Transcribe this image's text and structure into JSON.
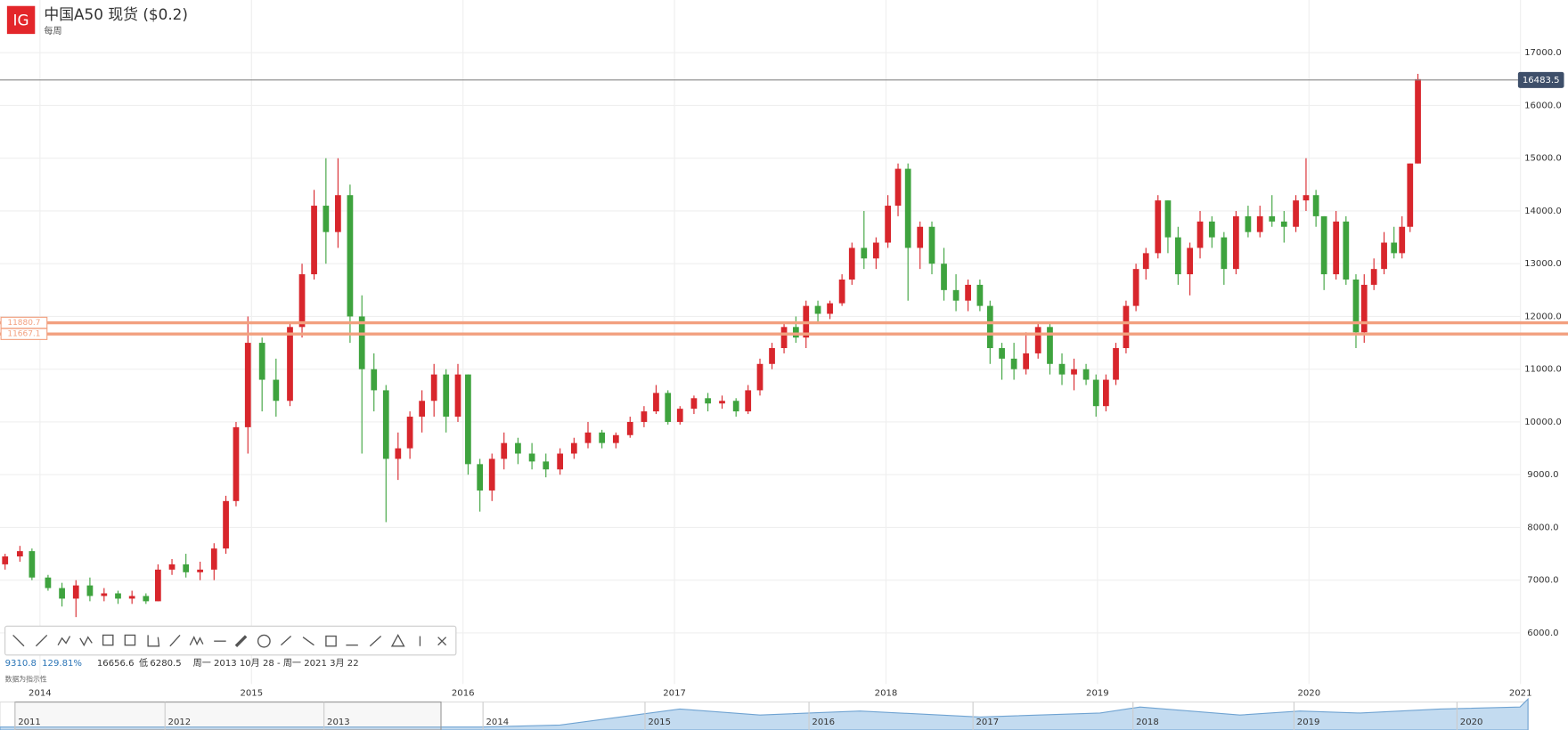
{
  "logo": "IG",
  "chart_data": {
    "type": "candlestick",
    "title": "中国A50 现货 ($0.2)",
    "subtitle": "每周",
    "up_color": "#d8262c",
    "down_color": "#3ea33e",
    "level_color": "#f2a07f",
    "grid": true,
    "x": [
      2013.835,
      2013.905,
      2013.962,
      2014.038,
      2014.104,
      2014.17,
      2014.236,
      2014.303,
      2014.369,
      2014.435,
      2014.501,
      2014.558,
      2014.624,
      2014.69,
      2014.757,
      2014.823,
      2014.879,
      2014.927,
      2014.983,
      2015.05,
      2015.116,
      2015.182,
      2015.239,
      2015.296,
      2015.352,
      2015.409,
      2015.466,
      2015.522,
      2015.579,
      2015.636,
      2015.693,
      2015.749,
      2015.806,
      2015.863,
      2015.92,
      2015.976,
      2016.024,
      2016.08,
      2016.137,
      2016.194,
      2016.26,
      2016.326,
      2016.392,
      2016.459,
      2016.525,
      2016.591,
      2016.657,
      2016.723,
      2016.79,
      2016.856,
      2016.913,
      2016.969,
      2017.026,
      2017.092,
      2017.158,
      2017.225,
      2017.291,
      2017.348,
      2017.404,
      2017.461,
      2017.518,
      2017.574,
      2017.622,
      2017.678,
      2017.735,
      2017.792,
      2017.839,
      2017.896,
      2017.953,
      2018.009,
      2018.057,
      2018.104,
      2018.161,
      2018.217,
      2018.274,
      2018.331,
      2018.388,
      2018.444,
      2018.492,
      2018.548,
      2018.605,
      2018.662,
      2018.719,
      2018.775,
      2018.832,
      2018.889,
      2018.946,
      2018.993,
      2019.04,
      2019.087,
      2019.135,
      2019.182,
      2019.229,
      2019.286,
      2019.333,
      2019.381,
      2019.437,
      2019.485,
      2019.541,
      2019.598,
      2019.655,
      2019.712,
      2019.768,
      2019.825,
      2019.882,
      2019.938,
      2019.986,
      2020.033,
      2020.071,
      2020.128,
      2020.175,
      2020.222,
      2020.261,
      2020.307,
      2020.355,
      2020.402,
      2020.44,
      2020.478,
      2020.515
    ],
    "open": [
      7300,
      7450,
      7550,
      7050,
      6850,
      6650,
      6900,
      6700,
      6750,
      6650,
      6700,
      6600,
      7200,
      7300,
      7150,
      7200,
      7600,
      8500,
      9900,
      11500,
      10800,
      10400,
      11800,
      12800,
      14100,
      13600,
      14300,
      12000,
      11000,
      10600,
      9300,
      9500,
      10100,
      10400,
      10900,
      10100,
      10900,
      9200,
      8700,
      9300,
      9600,
      9400,
      9250,
      9100,
      9400,
      9600,
      9800,
      9600,
      9750,
      10000,
      10200,
      10550,
      10000,
      10250,
      10450,
      10350,
      10400,
      10200,
      10600,
      11100,
      11400,
      11800,
      11600,
      12200,
      12050,
      12250,
      12700,
      13300,
      13100,
      13400,
      14100,
      14800,
      13300,
      13700,
      13000,
      12500,
      12300,
      12600,
      12200,
      11400,
      11200,
      11000,
      11300,
      11800,
      11100,
      10900,
      11000,
      10800,
      10300,
      10800,
      11400,
      12200,
      12900,
      13200,
      14200,
      13500,
      12800,
      13300,
      13800,
      13500,
      12900,
      13900,
      13600,
      13900,
      13800,
      13700,
      14200,
      14300,
      13900,
      12800,
      13800,
      12700,
      11700,
      12600,
      12900,
      13400,
      13200,
      13700,
      14900
    ],
    "high": [
      7500,
      7650,
      7600,
      7100,
      6950,
      7000,
      7050,
      6850,
      6800,
      6800,
      6750,
      7300,
      7400,
      7500,
      7350,
      7700,
      8600,
      10000,
      12000,
      11600,
      11200,
      11900,
      13000,
      14400,
      15000,
      15000,
      14500,
      12400,
      11300,
      10700,
      9800,
      10200,
      10600,
      11100,
      11000,
      11100,
      10900,
      9300,
      9400,
      9800,
      9700,
      9600,
      9400,
      9500,
      9700,
      10000,
      9850,
      9800,
      10100,
      10300,
      10700,
      10600,
      10300,
      10500,
      10550,
      10500,
      10450,
      10700,
      11200,
      11500,
      11900,
      12000,
      12300,
      12300,
      12300,
      12800,
      13400,
      14000,
      13500,
      14300,
      14900,
      14900,
      13800,
      13800,
      13300,
      12800,
      12700,
      12700,
      12300,
      11500,
      11500,
      11700,
      11900,
      11900,
      11300,
      11200,
      11100,
      10900,
      10900,
      11500,
      12300,
      13000,
      13300,
      14300,
      14200,
      13700,
      13400,
      14000,
      13900,
      13600,
      14000,
      14100,
      14100,
      14300,
      14000,
      14300,
      15000,
      14400,
      13900,
      14000,
      13900,
      12800,
      12800,
      13100,
      13600,
      13700,
      13900,
      14900,
      16600
    ],
    "low": [
      7200,
      7350,
      7000,
      6800,
      6500,
      6300,
      6600,
      6600,
      6550,
      6550,
      6550,
      6600,
      7100,
      7050,
      7000,
      7000,
      7500,
      8400,
      9400,
      10200,
      10100,
      10300,
      11600,
      12700,
      13000,
      13300,
      11500,
      9400,
      10200,
      8100,
      8900,
      9300,
      9800,
      10100,
      9800,
      10000,
      9000,
      8300,
      8500,
      9100,
      9200,
      9100,
      8950,
      9000,
      9300,
      9500,
      9500,
      9500,
      9700,
      9900,
      10150,
      9950,
      9950,
      10150,
      10200,
      10250,
      10100,
      10150,
      10500,
      11000,
      11300,
      11500,
      11400,
      11900,
      11950,
      12200,
      12600,
      12900,
      12900,
      13300,
      13900,
      12300,
      12900,
      12800,
      12300,
      12100,
      12100,
      12100,
      11100,
      10800,
      10800,
      10900,
      11200,
      10900,
      10700,
      10600,
      10700,
      10100,
      10200,
      10700,
      11300,
      12100,
      12700,
      13100,
      13200,
      12600,
      12400,
      13100,
      13300,
      12600,
      12800,
      13500,
      13500,
      13700,
      13400,
      13600,
      14000,
      13700,
      12500,
      12700,
      12600,
      11400,
      11500,
      12500,
      12800,
      13100,
      13100,
      13600,
      14900
    ],
    "close": [
      7450,
      7550,
      7050,
      6850,
      6650,
      6900,
      6700,
      6750,
      6650,
      6700,
      6600,
      7200,
      7300,
      7150,
      7200,
      7600,
      8500,
      9900,
      11500,
      10800,
      10400,
      11800,
      12800,
      14100,
      13600,
      14300,
      12000,
      11000,
      10600,
      9300,
      9500,
      10100,
      10400,
      10900,
      10100,
      10900,
      9200,
      8700,
      9300,
      9600,
      9400,
      9250,
      9100,
      9400,
      9600,
      9800,
      9600,
      9750,
      10000,
      10200,
      10550,
      10000,
      10250,
      10450,
      10350,
      10400,
      10200,
      10600,
      11100,
      11400,
      11800,
      11600,
      12200,
      12050,
      12250,
      12700,
      13300,
      13100,
      13400,
      14100,
      14800,
      13300,
      13700,
      13000,
      12500,
      12300,
      12600,
      12200,
      11400,
      11200,
      11000,
      11300,
      11800,
      11100,
      10900,
      11000,
      10800,
      10300,
      10800,
      11400,
      12200,
      12900,
      13200,
      14200,
      13500,
      12800,
      13300,
      13800,
      13500,
      12900,
      13900,
      13600,
      13900,
      13800,
      13700,
      14200,
      14300,
      13900,
      12800,
      13800,
      12700,
      11700,
      12600,
      12900,
      13400,
      13200,
      13700,
      14900,
      16500
    ],
    "xlim": [
      2013.81,
      2021.0
    ],
    "xticks": [
      2014,
      2015,
      2016,
      2017,
      2018,
      2019,
      2020,
      2021
    ],
    "ylim": [
      5030,
      18000
    ],
    "yticks": [
      {
        "value": 6000,
        "label": "6000.0"
      },
      {
        "value": 7000,
        "label": "7000.0"
      },
      {
        "value": 8000,
        "label": "8000.0"
      },
      {
        "value": 9000,
        "label": "9000.0"
      },
      {
        "value": 10000,
        "label": "10000.0"
      },
      {
        "value": 11000,
        "label": "11000.0"
      },
      {
        "value": 12000,
        "label": "12000.0"
      },
      {
        "value": 13000,
        "label": "13000.0"
      },
      {
        "value": 14000,
        "label": "14000.0"
      },
      {
        "value": 15000,
        "label": "15000.0"
      },
      {
        "value": 16000,
        "label": "16000.0"
      },
      {
        "value": 17000,
        "label": "17000.0"
      }
    ],
    "last_price": 16483.5,
    "levels": [
      11880.7,
      11667.1
    ]
  },
  "info": {
    "change": "9310.8",
    "change_pct": "129.81%",
    "high": "16656.6",
    "low_label": "低",
    "low": "6280.5",
    "range": "周一 2013 10月 28 - 周一 2021 3月 22",
    "note": "数据为指示性"
  },
  "navigator": {
    "labels": [
      "2011",
      "2012",
      "2013",
      "2014",
      "2015",
      "2016",
      "2017",
      "2018",
      "2019",
      "2020"
    ]
  }
}
